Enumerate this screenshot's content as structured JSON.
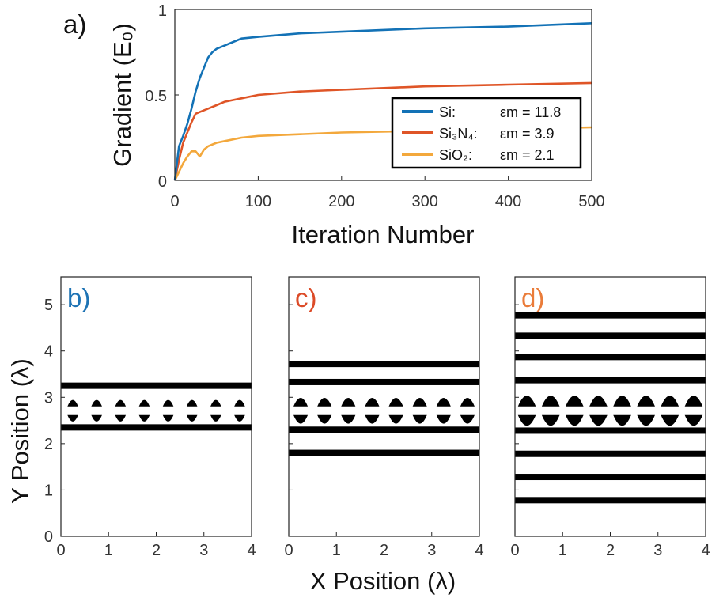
{
  "chart_data": [
    {
      "panel_label": "a)",
      "type": "line",
      "xlabel": "Iteration Number",
      "ylabel": "Gradient (E₀)",
      "xlim": [
        0,
        500
      ],
      "ylim": [
        0,
        1
      ],
      "xticks": [
        "0",
        "100",
        "200",
        "300",
        "400",
        "500"
      ],
      "yticks": [
        "0",
        "0.5",
        "1"
      ],
      "grid": false,
      "legend_position": "lower-right",
      "series": [
        {
          "name": "Si:",
          "eps_label": "εm = 11.8",
          "color": "#1372b6",
          "x": [
            0,
            5,
            10,
            15,
            20,
            25,
            30,
            35,
            40,
            45,
            50,
            60,
            70,
            80,
            100,
            150,
            200,
            300,
            400,
            500
          ],
          "y": [
            0,
            0.2,
            0.26,
            0.33,
            0.42,
            0.52,
            0.6,
            0.66,
            0.72,
            0.75,
            0.77,
            0.79,
            0.81,
            0.83,
            0.84,
            0.86,
            0.87,
            0.89,
            0.9,
            0.92
          ]
        },
        {
          "name": "Si₃N₄:",
          "eps_label": "εm = 3.9",
          "color": "#df5527",
          "x": [
            0,
            5,
            10,
            15,
            20,
            25,
            30,
            40,
            50,
            60,
            80,
            100,
            150,
            200,
            300,
            400,
            500
          ],
          "y": [
            0,
            0.12,
            0.22,
            0.28,
            0.34,
            0.39,
            0.4,
            0.42,
            0.44,
            0.46,
            0.48,
            0.5,
            0.52,
            0.53,
            0.55,
            0.56,
            0.57
          ]
        },
        {
          "name": "SiO₂:",
          "eps_label": "εm = 2.1",
          "color": "#f3a83c",
          "x": [
            0,
            5,
            10,
            15,
            20,
            25,
            30,
            35,
            40,
            50,
            60,
            80,
            100,
            150,
            200,
            300,
            400,
            500
          ],
          "y": [
            0,
            0.05,
            0.1,
            0.14,
            0.17,
            0.17,
            0.14,
            0.18,
            0.2,
            0.22,
            0.23,
            0.25,
            0.26,
            0.27,
            0.28,
            0.29,
            0.3,
            0.31
          ]
        }
      ]
    },
    {
      "type": "structure-map",
      "xlabel": "X Position (λ)",
      "ylabel": "Y Position (λ)",
      "xlim": [
        0,
        4
      ],
      "ylim": [
        0,
        5.6
      ],
      "xticks": [
        "0",
        "1",
        "2",
        "3",
        "4"
      ],
      "yticks": [
        "0",
        "1",
        "2",
        "3",
        "4",
        "5"
      ],
      "panels": [
        {
          "label": "b)",
          "label_color": "#1e73b4",
          "bars": [
            2.35,
            3.25
          ],
          "bump_rows": [
            {
              "y": 2.77,
              "direction": "up",
              "size": 0.9
            },
            {
              "y": 2.65,
              "direction": "down",
              "size": 0.9
            }
          ]
        },
        {
          "label": "c)",
          "label_color": "#dc4b28",
          "bars": [
            1.8,
            2.3,
            3.33,
            3.72
          ],
          "bump_rows": [
            {
              "y": 2.77,
              "direction": "up",
              "size": 1.2
            },
            {
              "y": 2.65,
              "direction": "down",
              "size": 1.2
            }
          ]
        },
        {
          "label": "d)",
          "label_color": "#ea7c3a",
          "bars": [
            0.78,
            1.28,
            1.78,
            2.28,
            3.37,
            3.87,
            4.33,
            4.77
          ],
          "bump_rows": [
            {
              "y": 2.77,
              "direction": "up",
              "size": 1.5
            },
            {
              "y": 2.65,
              "direction": "down",
              "size": 1.5
            }
          ]
        }
      ]
    }
  ]
}
